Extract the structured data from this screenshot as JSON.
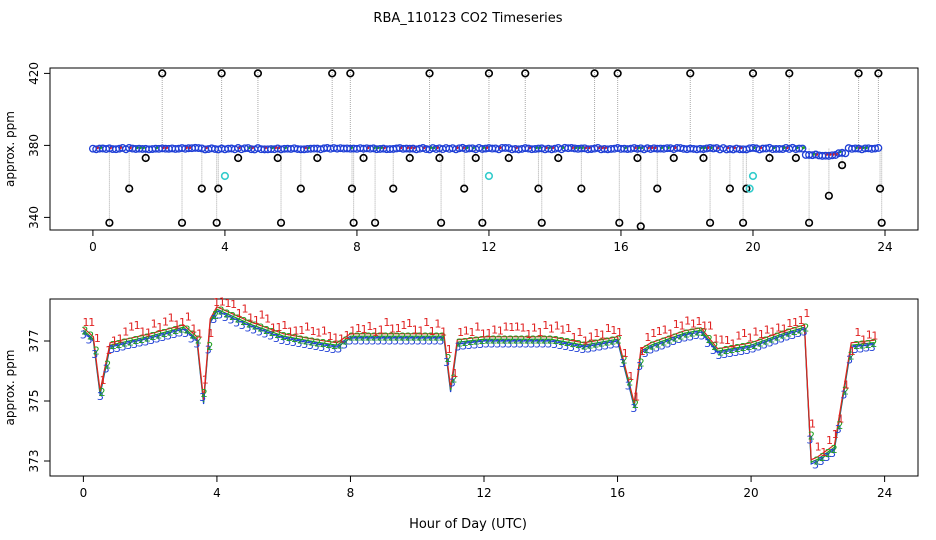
{
  "title": "RBA_110123  CO2 Timeseries",
  "xlabel": "Hour of Day (UTC)",
  "chart_data": [
    {
      "type": "scatter",
      "panel": "top",
      "ylabel": "approx. ppm",
      "xlim": [
        -1.3,
        25
      ],
      "ylim": [
        333,
        423
      ],
      "xticks": [
        0,
        4,
        8,
        12,
        16,
        20,
        24
      ],
      "yticks": [
        340,
        380,
        420
      ],
      "series": [
        {
          "name": "baseline-circles",
          "marker": "circle",
          "color": "#1f3fd6",
          "level": 378.2
        },
        {
          "name": "outlier-high",
          "marker": "circle",
          "color": "#000000",
          "x": [
            2.1,
            3.9,
            5.0,
            7.25,
            7.8,
            10.2,
            12.0,
            13.1,
            15.2,
            15.9,
            18.1,
            20.0,
            21.1,
            23.2,
            23.8
          ],
          "y": [
            420,
            420,
            420,
            420,
            420,
            420,
            420,
            420,
            420,
            420,
            420,
            420,
            420,
            420,
            420
          ]
        },
        {
          "name": "outlier-mid",
          "marker": "circle",
          "color": "#000000",
          "x": [
            1.1,
            1.6,
            3.3,
            3.8,
            4.4,
            5.6,
            6.3,
            6.8,
            7.85,
            8.2,
            9.1,
            9.6,
            10.5,
            11.25,
            11.6,
            12.6,
            13.5,
            14.1,
            14.8,
            16.5,
            17.1,
            17.6,
            18.5,
            19.3,
            19.8,
            20.5,
            21.3,
            22.3,
            22.7,
            23.85
          ],
          "y": [
            356,
            373,
            356,
            356,
            373,
            373,
            356,
            373,
            356,
            373,
            356,
            373,
            373,
            356,
            373,
            373,
            356,
            373,
            356,
            373,
            356,
            373,
            373,
            356,
            356,
            373,
            373,
            352,
            369,
            356
          ]
        },
        {
          "name": "outlier-low",
          "marker": "circle",
          "color": "#000000",
          "x": [
            0.5,
            2.7,
            3.75,
            5.7,
            7.9,
            8.55,
            10.55,
            11.8,
            13.6,
            15.95,
            16.6,
            18.7,
            19.7,
            21.7,
            23.9
          ],
          "y": [
            337,
            337,
            337,
            337,
            337,
            337,
            337,
            337,
            337,
            337,
            335,
            337,
            337,
            337,
            337
          ]
        },
        {
          "name": "cyan-points",
          "marker": "circle",
          "color": "#33cccc",
          "x": [
            4.0,
            12.0,
            19.9,
            20.0
          ],
          "y": [
            363,
            363,
            356,
            363
          ]
        }
      ]
    },
    {
      "type": "scatter",
      "panel": "bottom",
      "ylabel": "approx. ppm",
      "xlim": [
        -1.0,
        25
      ],
      "ylim": [
        372.5,
        378.4
      ],
      "xticks": [
        0,
        4,
        8,
        12,
        16,
        20,
        24
      ],
      "yticks": [
        373,
        375,
        377
      ],
      "series": [
        {
          "name": "1",
          "label_char": "1",
          "color": "#e02020"
        },
        {
          "name": "2",
          "label_char": "2",
          "color": "#20a020"
        },
        {
          "name": "3",
          "label_char": "3",
          "color": "#1f3fd6"
        }
      ],
      "profile_x": [
        0.0,
        0.3,
        0.5,
        0.8,
        1.2,
        2.0,
        3.0,
        3.4,
        3.6,
        3.8,
        4.0,
        5.0,
        6.0,
        7.0,
        7.6,
        8.0,
        9.0,
        10.0,
        10.8,
        11.0,
        11.2,
        12.0,
        13.0,
        14.0,
        15.0,
        16.0,
        16.5,
        16.7,
        17.0,
        18.0,
        18.5,
        19.0,
        20.0,
        21.0,
        21.6,
        21.8,
        22.0,
        22.5,
        23.0,
        23.8
      ],
      "profile_y": [
        377.3,
        377.0,
        375.2,
        376.8,
        376.9,
        377.1,
        377.4,
        377.0,
        374.9,
        377.6,
        378.0,
        377.5,
        377.1,
        376.9,
        376.8,
        377.1,
        377.1,
        377.1,
        377.1,
        375.3,
        376.9,
        377.0,
        377.0,
        377.0,
        376.8,
        377.0,
        374.8,
        376.6,
        376.8,
        377.2,
        377.3,
        376.6,
        376.8,
        377.2,
        377.4,
        372.9,
        373.0,
        373.4,
        376.8,
        376.9
      ]
    }
  ]
}
